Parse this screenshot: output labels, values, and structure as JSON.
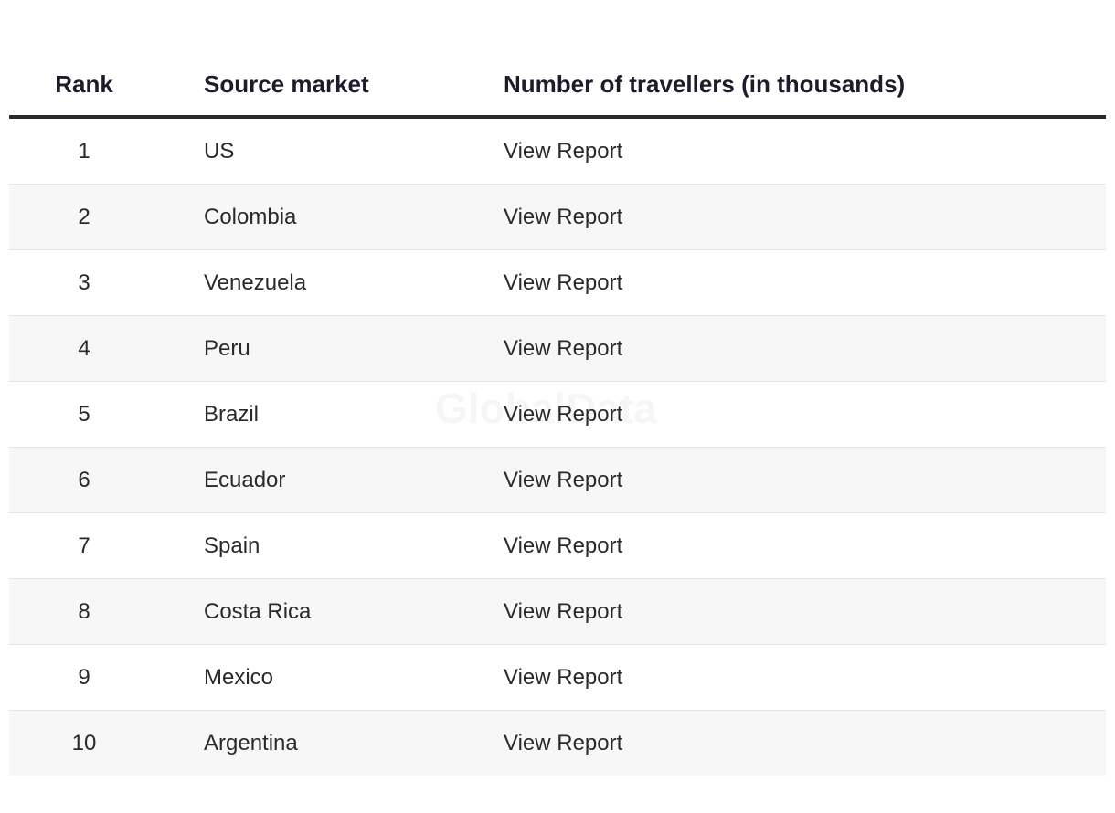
{
  "watermark": "GlobalData",
  "table": {
    "header": [
      "Rank",
      "Source market",
      "Number of travellers (in thousands)"
    ],
    "rows": [
      [
        1,
        "US",
        "View Report"
      ],
      [
        2,
        "Colombia",
        "View Report"
      ],
      [
        3,
        "Venezuela",
        "View Report"
      ],
      [
        4,
        "Peru",
        "View Report"
      ],
      [
        5,
        "Brazil",
        "View Report"
      ],
      [
        6,
        "Ecuador",
        "View Report"
      ],
      [
        7,
        "Spain",
        "View Report"
      ],
      [
        8,
        "Costa Rica",
        "View Report"
      ],
      [
        9,
        "Mexico",
        "View Report"
      ],
      [
        10,
        "Argentina",
        "View Report"
      ]
    ]
  }
}
